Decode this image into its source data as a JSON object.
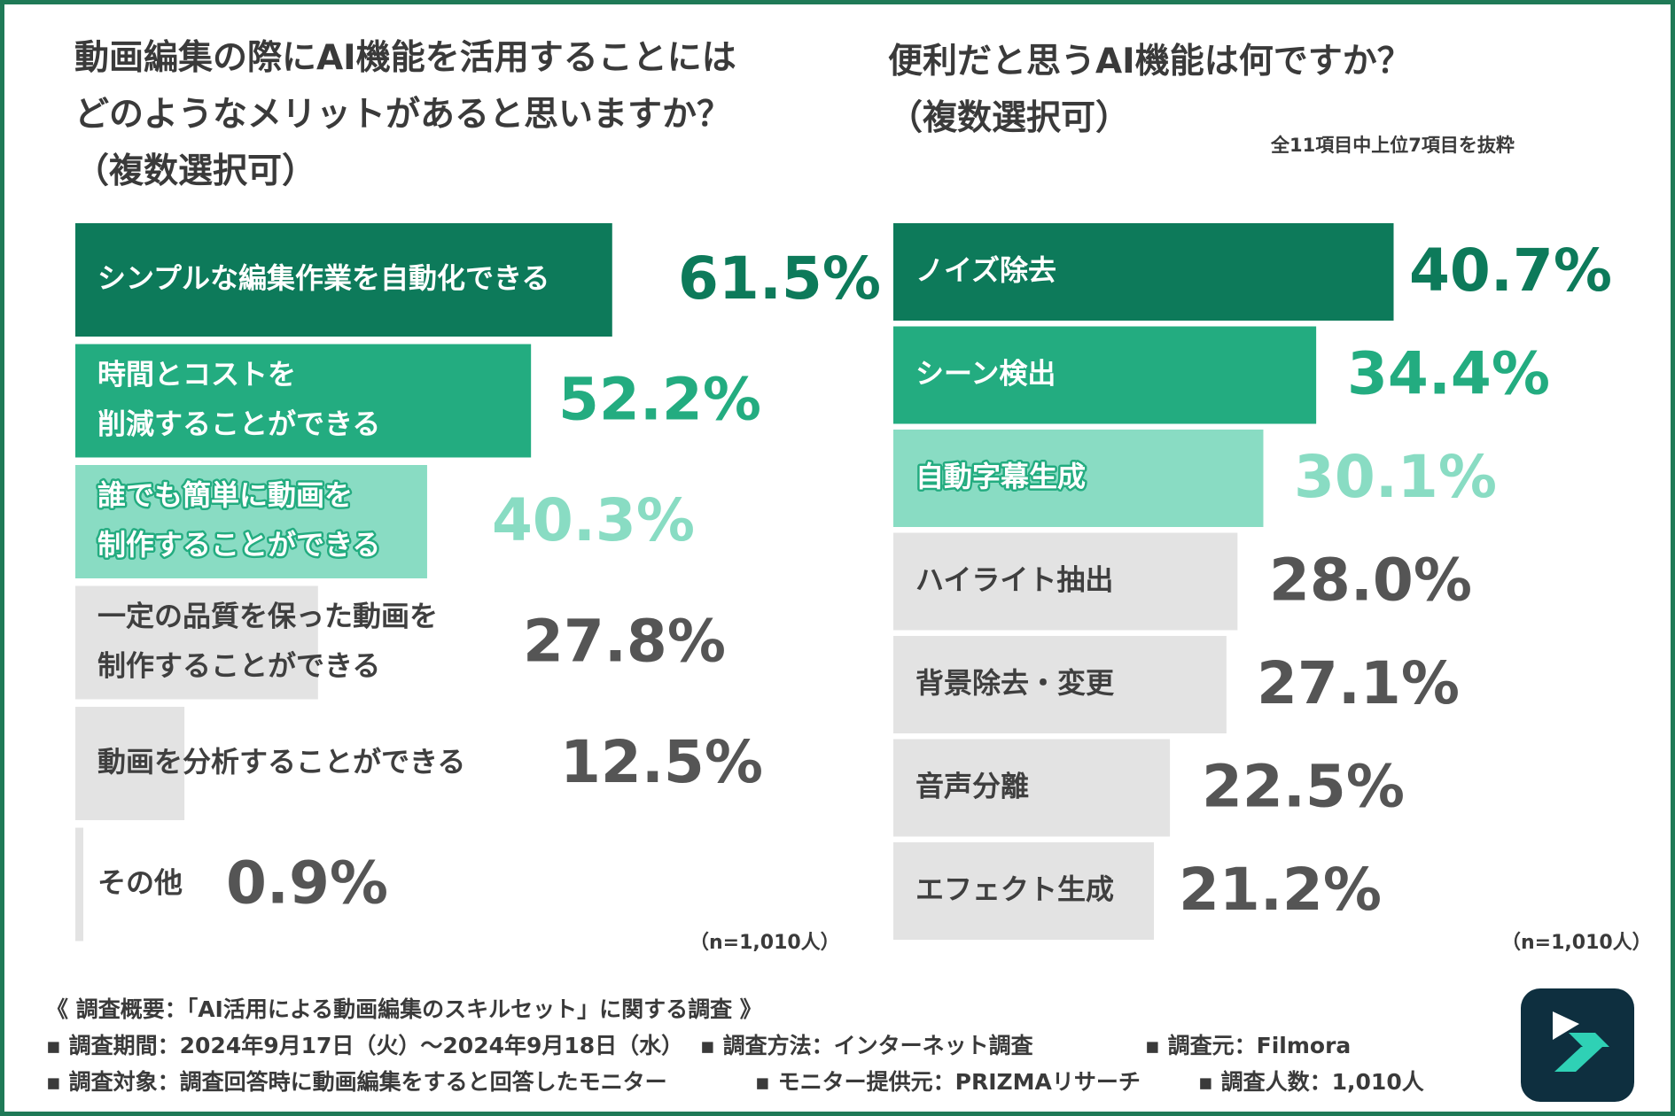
{
  "colors": {
    "frame": "#1f7a57",
    "tier1": "#0d7a5a",
    "tier2": "#23ac80",
    "tier3": "#89dcc3",
    "other": "#e3e3e3",
    "value_gray": "#555555",
    "label_dark": "#3f3f3f"
  },
  "chart_data": [
    {
      "type": "bar",
      "orientation": "horizontal",
      "title": "動画編集の際にAI機能を活用することにはどのようなメリットがあると思いますか？（複数選択可）",
      "title_lines": [
        "動画編集の際にAI機能を活用することには",
        "どのようなメリットがあると思いますか？",
        "（複数選択可）"
      ],
      "unit": "%",
      "xlim": [
        0,
        100
      ],
      "categories": [
        [
          "シンプルな編集作業を自動化できる"
        ],
        [
          "時間とコストを",
          "削減することができる"
        ],
        [
          "誰でも簡単に動画を",
          "制作することができる"
        ],
        [
          "一定の品質を保った動画を",
          "制作することができる"
        ],
        [
          "動画を分析することができる"
        ],
        [
          "その他"
        ]
      ],
      "values": [
        61.5,
        52.2,
        40.3,
        27.8,
        12.5,
        0.9
      ],
      "value_labels": [
        "61.5%",
        "52.2%",
        "40.3%",
        "27.8%",
        "12.5%",
        "0.9%"
      ],
      "tiers": [
        "tier1",
        "tier2",
        "tier3",
        "other",
        "other",
        "other"
      ],
      "sample_note": "（n=1,010人）"
    },
    {
      "type": "bar",
      "orientation": "horizontal",
      "title": "便利だと思うAI機能は何ですか？（複数選択可）",
      "title_lines": [
        "便利だと思うAI機能は何ですか？",
        "（複数選択可）"
      ],
      "subtitle": "全11項目中上位7項目を抜粋",
      "unit": "%",
      "xlim": [
        0,
        100
      ],
      "categories": [
        [
          "ノイズ除去"
        ],
        [
          "シーン検出"
        ],
        [
          "自動字幕生成"
        ],
        [
          "ハイライト抽出"
        ],
        [
          "背景除去・変更"
        ],
        [
          "音声分離"
        ],
        [
          "エフェクト生成"
        ]
      ],
      "values": [
        40.7,
        34.4,
        30.1,
        28.0,
        27.1,
        22.5,
        21.2
      ],
      "value_labels": [
        "40.7%",
        "34.4%",
        "30.1%",
        "28.0%",
        "27.1%",
        "22.5%",
        "21.2%"
      ],
      "tiers": [
        "tier1",
        "tier2",
        "tier3",
        "other",
        "other",
        "other",
        "other"
      ],
      "sample_note": "（n=1,010人）"
    }
  ],
  "footer": {
    "heading": "《 調査概要：「AI活用による動画編集のスキルセット」に関する調査 》",
    "period": "▪ 調査期間：2024年9月17日（火）～2024年9月18日（水）",
    "method": "▪ 調査方法：インターネット調査",
    "source": "▪ 調査元：Filmora",
    "target": "▪ 調査対象：調査回答時に動画編集をすると回答したモニター",
    "monitor": "▪ モニター提供元：PRIZMAリサーチ",
    "count": "▪ 調査人数：1,010人"
  },
  "logo": {
    "icon": "filmora-logo-icon"
  }
}
